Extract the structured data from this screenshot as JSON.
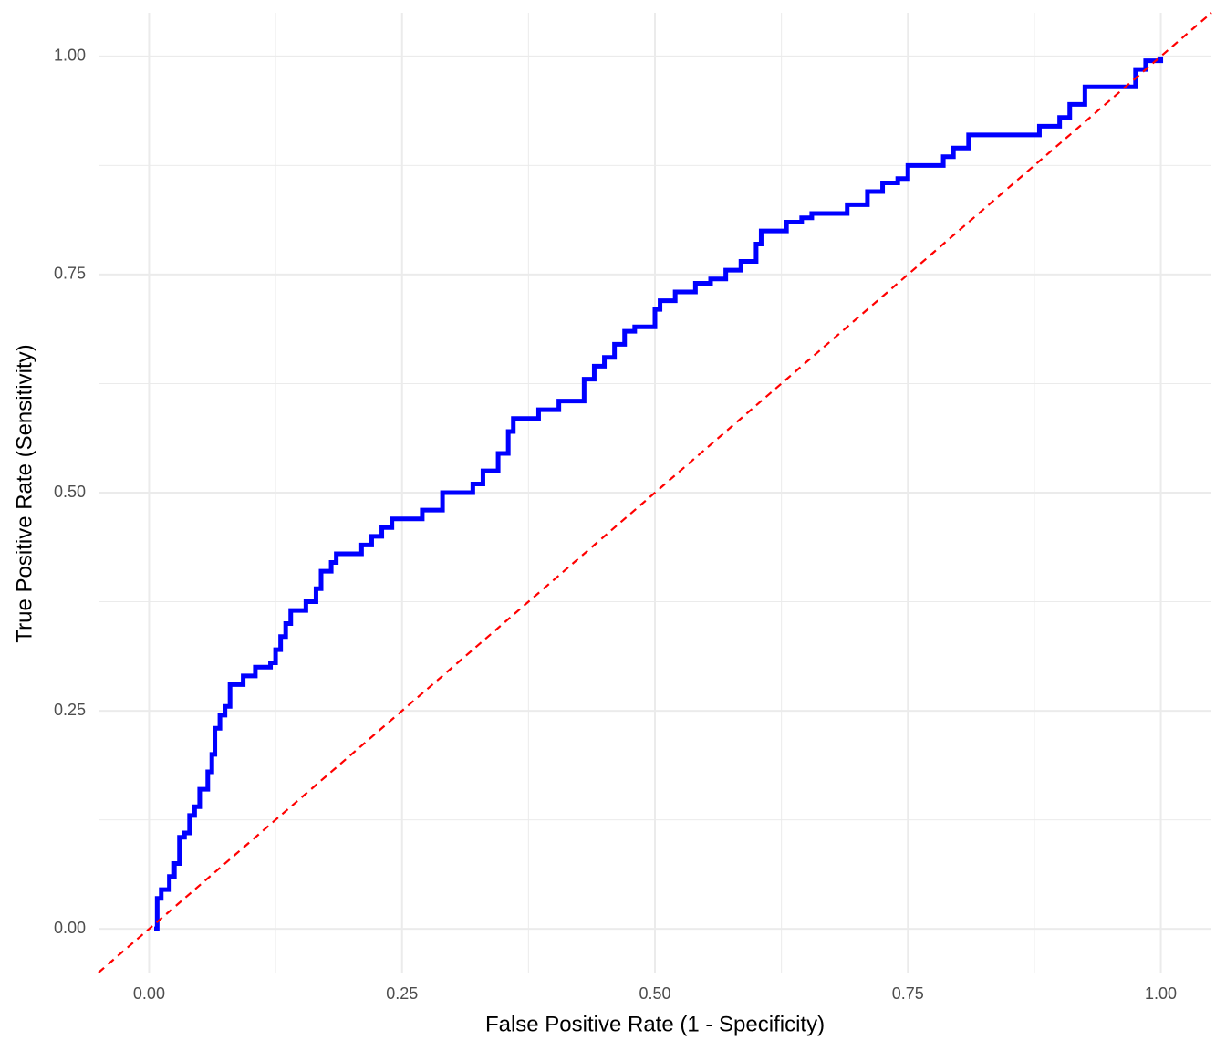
{
  "chart_data": {
    "type": "line",
    "xlabel": "False Positive Rate (1 - Specificity)",
    "ylabel": "True Positive Rate (Sensitivity)",
    "xlim": [
      -0.05,
      1.05
    ],
    "ylim": [
      -0.05,
      1.05
    ],
    "xticks": [
      {
        "value": 0,
        "label": "0.00"
      },
      {
        "value": 0.25,
        "label": "0.25"
      },
      {
        "value": 0.5,
        "label": "0.50"
      },
      {
        "value": 0.75,
        "label": "0.75"
      },
      {
        "value": 1,
        "label": "1.00"
      }
    ],
    "yticks": [
      {
        "value": 0,
        "label": "0.00"
      },
      {
        "value": 0.25,
        "label": "0.25"
      },
      {
        "value": 0.5,
        "label": "0.50"
      },
      {
        "value": 0.75,
        "label": "0.75"
      },
      {
        "value": 1,
        "label": "1.00"
      }
    ],
    "x_minor_ticks": [
      0.125,
      0.375,
      0.625,
      0.875
    ],
    "y_minor_ticks": [
      0.125,
      0.375,
      0.625,
      0.875
    ],
    "grid": true,
    "x": [
      0.005,
      0.008,
      0.008,
      0.012,
      0.012,
      0.02,
      0.02,
      0.025,
      0.025,
      0.03,
      0.03,
      0.035,
      0.035,
      0.04,
      0.04,
      0.045,
      0.045,
      0.05,
      0.05,
      0.058,
      0.058,
      0.062,
      0.062,
      0.065,
      0.065,
      0.07,
      0.07,
      0.075,
      0.075,
      0.08,
      0.08,
      0.093,
      0.093,
      0.105,
      0.105,
      0.12,
      0.12,
      0.125,
      0.125,
      0.13,
      0.13,
      0.135,
      0.135,
      0.14,
      0.14,
      0.155,
      0.155,
      0.165,
      0.165,
      0.17,
      0.17,
      0.18,
      0.18,
      0.185,
      0.185,
      0.21,
      0.21,
      0.22,
      0.22,
      0.23,
      0.23,
      0.24,
      0.24,
      0.27,
      0.27,
      0.29,
      0.29,
      0.32,
      0.32,
      0.33,
      0.33,
      0.345,
      0.345,
      0.355,
      0.355,
      0.36,
      0.36,
      0.385,
      0.385,
      0.405,
      0.405,
      0.43,
      0.43,
      0.44,
      0.44,
      0.45,
      0.45,
      0.46,
      0.46,
      0.47,
      0.47,
      0.48,
      0.48,
      0.5,
      0.5,
      0.505,
      0.505,
      0.52,
      0.52,
      0.54,
      0.54,
      0.555,
      0.555,
      0.57,
      0.57,
      0.585,
      0.585,
      0.6,
      0.6,
      0.605,
      0.605,
      0.63,
      0.63,
      0.645,
      0.645,
      0.655,
      0.655,
      0.69,
      0.69,
      0.71,
      0.71,
      0.725,
      0.725,
      0.74,
      0.74,
      0.75,
      0.75,
      0.785,
      0.785,
      0.795,
      0.795,
      0.81,
      0.81,
      0.88,
      0.88,
      0.9,
      0.9,
      0.91,
      0.91,
      0.925,
      0.925,
      0.975,
      0.975,
      0.985,
      0.985,
      1,
      1
    ],
    "series": [
      {
        "color": "#0000ff",
        "values": [
          0,
          0,
          0.035,
          0.035,
          0.045,
          0.045,
          0.06,
          0.06,
          0.075,
          0.075,
          0.105,
          0.105,
          0.11,
          0.11,
          0.13,
          0.13,
          0.14,
          0.14,
          0.16,
          0.16,
          0.18,
          0.18,
          0.2,
          0.2,
          0.23,
          0.23,
          0.245,
          0.245,
          0.255,
          0.255,
          0.28,
          0.28,
          0.29,
          0.29,
          0.3,
          0.3,
          0.305,
          0.305,
          0.32,
          0.32,
          0.335,
          0.335,
          0.35,
          0.35,
          0.365,
          0.365,
          0.375,
          0.375,
          0.39,
          0.39,
          0.41,
          0.41,
          0.42,
          0.42,
          0.43,
          0.43,
          0.44,
          0.44,
          0.45,
          0.45,
          0.46,
          0.46,
          0.47,
          0.47,
          0.48,
          0.48,
          0.5,
          0.5,
          0.51,
          0.51,
          0.525,
          0.525,
          0.545,
          0.545,
          0.57,
          0.57,
          0.585,
          0.585,
          0.595,
          0.595,
          0.605,
          0.605,
          0.63,
          0.63,
          0.645,
          0.645,
          0.655,
          0.655,
          0.67,
          0.67,
          0.685,
          0.685,
          0.69,
          0.69,
          0.71,
          0.71,
          0.72,
          0.72,
          0.73,
          0.73,
          0.74,
          0.74,
          0.745,
          0.745,
          0.755,
          0.755,
          0.765,
          0.765,
          0.785,
          0.785,
          0.8,
          0.8,
          0.81,
          0.81,
          0.815,
          0.815,
          0.82,
          0.82,
          0.83,
          0.83,
          0.845,
          0.845,
          0.855,
          0.855,
          0.86,
          0.86,
          0.875,
          0.875,
          0.885,
          0.885,
          0.895,
          0.895,
          0.91,
          0.91,
          0.92,
          0.92,
          0.93,
          0.93,
          0.945,
          0.945,
          0.965,
          0.965,
          0.985,
          0.985,
          0.995,
          0.995,
          1
        ]
      }
    ],
    "reference_line": {
      "slope": 1,
      "intercept": 0,
      "color": "#ff0000",
      "dashed": true
    }
  }
}
